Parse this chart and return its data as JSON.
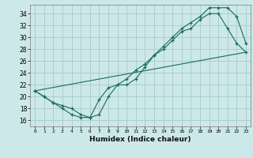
{
  "xlabel": "Humidex (Indice chaleur)",
  "bg_color": "#cde8e8",
  "grid_color": "#aacfcf",
  "line_color": "#1a6b5a",
  "xlim": [
    -0.5,
    23.5
  ],
  "ylim": [
    15.0,
    35.5
  ],
  "xticks": [
    0,
    1,
    2,
    3,
    4,
    5,
    6,
    7,
    8,
    9,
    10,
    11,
    12,
    13,
    14,
    15,
    16,
    17,
    18,
    19,
    20,
    21,
    22,
    23
  ],
  "yticks": [
    16,
    18,
    20,
    22,
    24,
    26,
    28,
    30,
    32,
    34
  ],
  "line1_x": [
    0,
    1,
    2,
    3,
    4,
    5,
    6,
    7,
    8,
    9,
    10,
    11,
    12,
    13,
    14,
    15,
    16,
    17,
    18,
    19,
    20,
    21,
    22,
    23
  ],
  "line1_y": [
    21,
    20,
    19,
    18,
    17,
    16.5,
    16.5,
    19.5,
    21.5,
    22,
    22,
    23,
    25,
    27,
    28,
    29.5,
    31,
    31.5,
    33,
    34,
    34,
    31.5,
    29,
    27.5
  ],
  "line2_x": [
    0,
    1,
    2,
    3,
    4,
    5,
    6,
    7,
    8,
    9,
    10,
    11,
    12,
    13,
    14,
    15,
    16,
    17,
    18,
    19,
    20,
    21,
    22,
    23
  ],
  "line2_y": [
    21,
    20,
    19,
    18.5,
    18,
    17,
    16.5,
    17,
    20,
    22,
    23,
    24.5,
    25.5,
    27,
    28.5,
    30,
    31.5,
    32.5,
    33.5,
    35,
    35,
    35,
    33.5,
    29
  ],
  "line3_x": [
    0,
    23
  ],
  "line3_y": [
    21,
    27.5
  ]
}
